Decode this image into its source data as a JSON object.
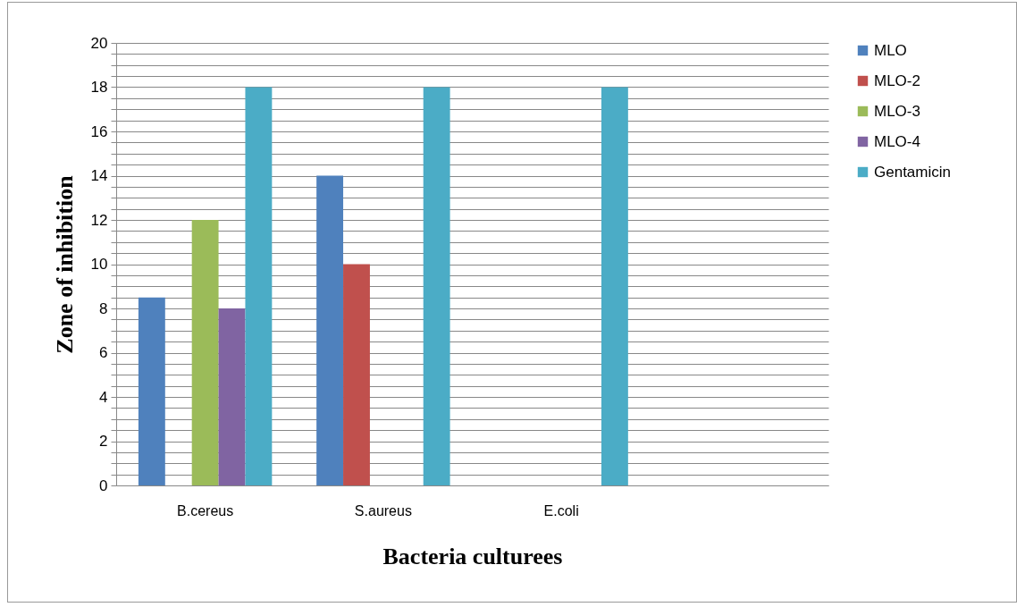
{
  "chart_data": {
    "type": "bar",
    "xlabel": "Bacteria culturees",
    "ylabel": "Zone of inhibition",
    "categories": [
      "B.cereus",
      "S.aureus",
      "E.coli",
      null
    ],
    "series": [
      {
        "name": "MLO",
        "color": "#4f81bd",
        "values": [
          8.5,
          14,
          0,
          null
        ]
      },
      {
        "name": "MLO-2",
        "color": "#c0504d",
        "values": [
          0,
          10,
          0,
          null
        ]
      },
      {
        "name": "MLO-3",
        "color": "#9bbb59",
        "values": [
          12,
          0,
          0,
          null
        ]
      },
      {
        "name": "MLO-4",
        "color": "#8064a2",
        "values": [
          8,
          0,
          0,
          null
        ]
      },
      {
        "name": "Gentamicin",
        "color": "#4bacc6",
        "values": [
          18,
          18,
          18,
          null
        ]
      }
    ],
    "ylim": [
      0,
      20
    ],
    "yticks": [
      0,
      {
        "value": 0.5,
        "label": null
      },
      {
        "value": 1,
        "label": null
      },
      {
        "value": 1.5,
        "label": null
      },
      2,
      {
        "value": 2.5,
        "label": null
      },
      {
        "value": 3,
        "label": null
      },
      {
        "value": 3.5,
        "label": null
      },
      4,
      {
        "value": 4.5,
        "label": null
      },
      {
        "value": 5,
        "label": null
      },
      {
        "value": 5.5,
        "label": null
      },
      6,
      {
        "value": 6.5,
        "label": null
      },
      {
        "value": 7,
        "label": null
      },
      {
        "value": 7.5,
        "label": null
      },
      8,
      {
        "value": 8.5,
        "label": null
      },
      {
        "value": 9,
        "label": null
      },
      {
        "value": 9.5,
        "label": null
      },
      10,
      {
        "value": 10.5,
        "label": null
      },
      {
        "value": 11,
        "label": null
      },
      {
        "value": 11.5,
        "label": null
      },
      12,
      {
        "value": 12.5,
        "label": null
      },
      {
        "value": 13,
        "label": null
      },
      {
        "value": 13.5,
        "label": null
      },
      14,
      {
        "value": 14.5,
        "label": null
      },
      {
        "value": 15,
        "label": null
      },
      {
        "value": 15.5,
        "label": null
      },
      16,
      {
        "value": 16.5,
        "label": null
      },
      {
        "value": 17,
        "label": null
      },
      {
        "value": 17.5,
        "label": null
      },
      18,
      {
        "value": 18.5,
        "label": null
      },
      {
        "value": 19,
        "label": null
      },
      {
        "value": 19.5,
        "label": null
      },
      20
    ],
    "grid": true,
    "legend": "right"
  }
}
